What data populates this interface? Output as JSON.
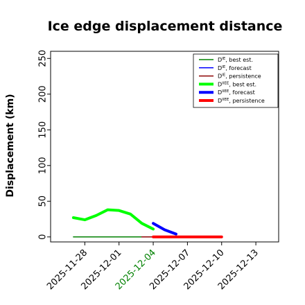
{
  "chart_data": {
    "type": "line",
    "title": "Ice edge displacement distance",
    "xlabel": "",
    "ylabel": "Displacement (km)",
    "ylim": [
      -7,
      260
    ],
    "xlim": [
      "2025-11-25",
      "2025-12-15"
    ],
    "yticks": [
      "0",
      "50",
      "100",
      "150",
      "200",
      "250"
    ],
    "xticks": [
      {
        "label": "2025-11-28",
        "color": "#000000"
      },
      {
        "label": "2025-12-01",
        "color": "#000000"
      },
      {
        "label": "2025-12-04",
        "color": "#008000"
      },
      {
        "label": "2025-12-07",
        "color": "#000000"
      },
      {
        "label": "2025-12-10",
        "color": "#000000"
      },
      {
        "label": "2025-12-13",
        "color": "#000000"
      }
    ],
    "grid": false,
    "legend_placement": "top-right",
    "series": [
      {
        "name": "D^{IE}, best est.",
        "color": "#008000",
        "width": 1.5,
        "x": [
          "2025-11-27",
          "2025-11-28",
          "2025-11-29",
          "2025-11-30",
          "2025-12-01",
          "2025-12-02",
          "2025-12-03",
          "2025-12-04"
        ],
        "y": [
          0,
          0,
          0,
          0,
          0,
          0,
          0,
          0
        ]
      },
      {
        "name": "D^{IE}, forecast",
        "color": "#0000ff",
        "width": 1.5,
        "x": [
          "2025-12-04",
          "2025-12-05",
          "2025-12-06"
        ],
        "y": [
          0,
          0,
          0
        ]
      },
      {
        "name": "D^{IE}, persistence",
        "color": "#8b0000",
        "width": 1.5,
        "x": [
          "2025-12-03",
          "2025-12-04",
          "2025-12-05",
          "2025-12-06",
          "2025-12-07",
          "2025-12-08",
          "2025-12-09",
          "2025-12-10"
        ],
        "y": [
          0,
          0,
          0,
          0,
          0,
          0,
          0,
          0
        ]
      },
      {
        "name": "D^{IIEE}, best est.",
        "color": "#00ff00",
        "width": 4,
        "x": [
          "2025-11-27",
          "2025-11-28",
          "2025-11-29",
          "2025-11-30",
          "2025-12-01",
          "2025-12-02",
          "2025-12-03",
          "2025-12-04"
        ],
        "y": [
          27,
          24,
          30,
          38,
          37,
          32,
          19,
          11
        ]
      },
      {
        "name": "D^{IIEE}, forecast",
        "color": "#0000ff",
        "width": 4,
        "x": [
          "2025-12-04",
          "2025-12-05",
          "2025-12-06"
        ],
        "y": [
          19,
          10,
          4
        ]
      },
      {
        "name": "D^{IIEE}, persistence",
        "color": "#ff0000",
        "width": 4,
        "x": [
          "2025-12-04",
          "2025-12-05",
          "2025-12-06",
          "2025-12-07",
          "2025-12-08",
          "2025-12-09",
          "2025-12-10"
        ],
        "y": [
          0,
          0,
          0,
          0,
          0,
          0,
          0
        ]
      }
    ]
  }
}
